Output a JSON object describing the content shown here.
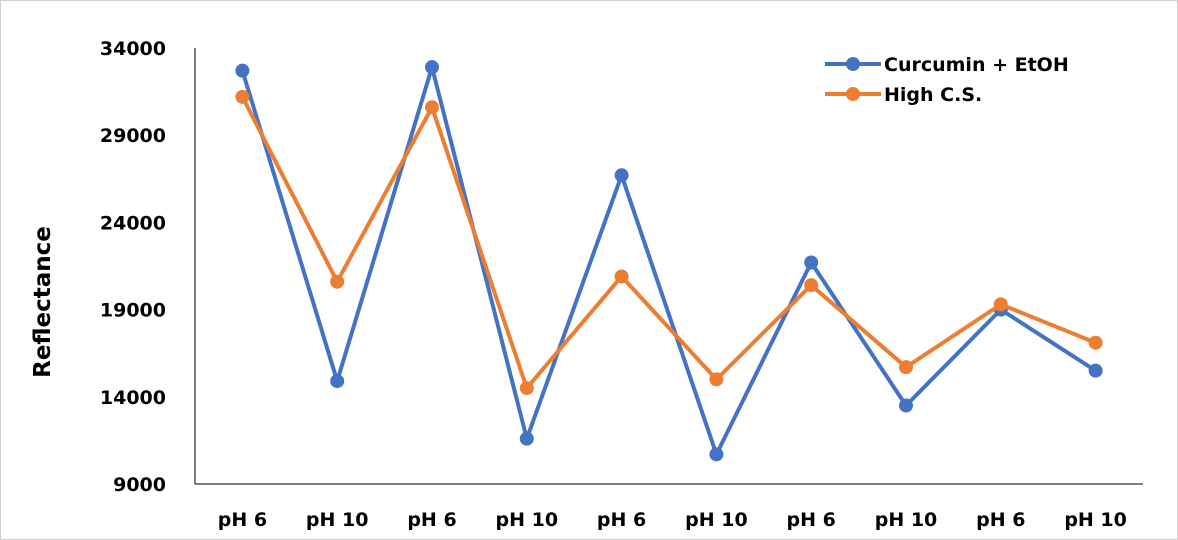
{
  "chart_data": {
    "type": "line",
    "categories": [
      "pH 6",
      "pH 10",
      "pH 6",
      "pH 10",
      "pH 6",
      "pH 10",
      "pH 6",
      "pH 10",
      "pH 6",
      "pH 10"
    ],
    "series": [
      {
        "name": "Curcumin + EtOH",
        "color": "#4472C4",
        "values": [
          32700,
          14900,
          32900,
          11600,
          26700,
          10700,
          21700,
          13500,
          19000,
          15500
        ]
      },
      {
        "name": "High C.S.",
        "color": "#ED7D31",
        "values": [
          31200,
          20600,
          30600,
          14500,
          20900,
          15000,
          20400,
          15700,
          19300,
          17100
        ]
      }
    ],
    "title": "",
    "xlabel": "",
    "ylabel": "Reflectance",
    "ylim": [
      9000,
      34000
    ],
    "yticks": [
      9000,
      14000,
      19000,
      24000,
      29000,
      34000
    ],
    "grid": false,
    "legend": "top-right"
  }
}
